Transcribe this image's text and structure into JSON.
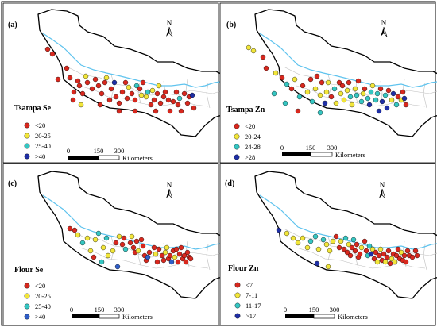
{
  "colors": {
    "frame": "#000000",
    "river": "#5fc3ee",
    "county_lines": "#bdbdbd",
    "boundary": "#000000"
  },
  "scalebar": {
    "ticks": [
      "0",
      "150",
      "300"
    ],
    "unit": "Kilometers"
  },
  "north_label": "N",
  "panels": [
    {
      "tag": "(a)",
      "legend_title": "Tsampa Se",
      "classes": [
        {
          "label": "<20",
          "color": "#d8281e"
        },
        {
          "label": "20-25",
          "color": "#f2e63a"
        },
        {
          "label": "25-40",
          "color": "#35c6c2"
        },
        {
          "label": ">40",
          "color": "#1f2fa6"
        }
      ]
    },
    {
      "tag": "(b)",
      "legend_title": "Tsampa Zn",
      "classes": [
        {
          "label": "<20",
          "color": "#d8281e"
        },
        {
          "label": "20-24",
          "color": "#f2e63a"
        },
        {
          "label": "24-28",
          "color": "#35c6c2"
        },
        {
          "label": ">28",
          "color": "#1f2fa6"
        }
      ]
    },
    {
      "tag": "(c)",
      "legend_title": "Flour Se",
      "classes": [
        {
          "label": "<20",
          "color": "#d8281e"
        },
        {
          "label": "20-25",
          "color": "#f2e63a"
        },
        {
          "label": "25-40",
          "color": "#35c6c2"
        },
        {
          "label": ">40",
          "color": "#2f5ec9"
        }
      ]
    },
    {
      "tag": "(d)",
      "legend_title": "Flour Zn",
      "classes": [
        {
          "label": "<7",
          "color": "#d8281e"
        },
        {
          "label": "7-11",
          "color": "#f2e63a"
        },
        {
          "label": "11-17",
          "color": "#35c6c2"
        },
        {
          "label": ">17",
          "color": "#1f2fa6"
        }
      ]
    }
  ]
}
